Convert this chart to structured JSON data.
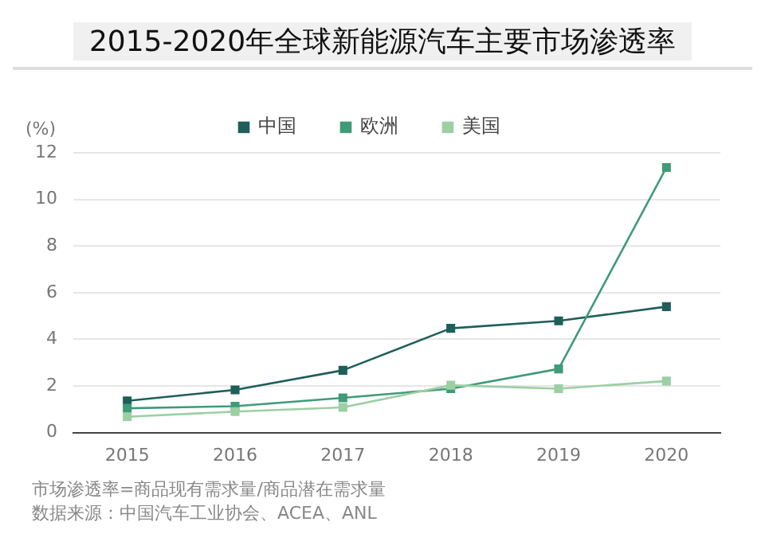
{
  "chart_data": {
    "type": "line",
    "title": "2015-2020年全球新能源汽车主要市场渗透率",
    "ylabel": "(%)",
    "categories": [
      "2015",
      "2016",
      "2017",
      "2018",
      "2019",
      "2020"
    ],
    "series": [
      {
        "name": "中国",
        "color": "#1e5f5a",
        "values": [
          1.36,
          1.83,
          2.67,
          4.47,
          4.79,
          5.4
        ]
      },
      {
        "name": "欧洲",
        "color": "#3f9b78",
        "values": [
          1.04,
          1.13,
          1.49,
          1.88,
          2.73,
          11.37
        ]
      },
      {
        "name": "美国",
        "color": "#9ccfa3",
        "values": [
          0.68,
          0.9,
          1.08,
          2.03,
          1.88,
          2.21
        ]
      }
    ],
    "ylim": [
      0,
      12
    ],
    "yticks": [
      0,
      2,
      4,
      6,
      8,
      10,
      12
    ],
    "grid": "y",
    "legend": "top",
    "marker": "square",
    "line_style": "solid",
    "annotations": [
      "市场渗透率=商品现有需求量/商品潜在需求量",
      "数据来源：中国汽车工业协会、ACEA、ANL"
    ]
  }
}
